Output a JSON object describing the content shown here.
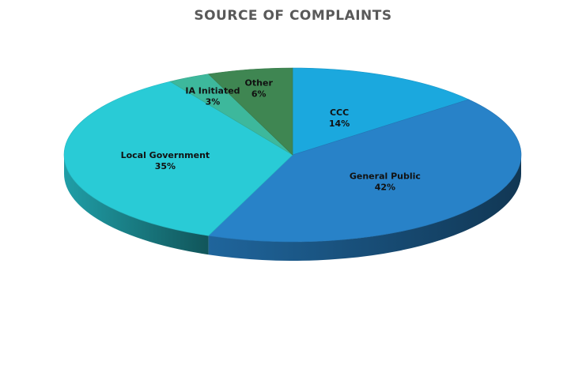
{
  "chart_data": {
    "type": "pie",
    "title": "SOURCE OF COMPLAINTS",
    "categories": [
      "CCC",
      "General Public",
      "Local Government",
      "IA Initiated",
      "Other"
    ],
    "values": [
      14,
      42,
      35,
      3,
      6
    ],
    "labels": [
      "14%",
      "42%",
      "35%",
      "3%",
      "6%"
    ],
    "colors": [
      "#1BA8DE",
      "#2882C8",
      "#29CBD6",
      "#3DB89C",
      "#3F8652"
    ],
    "legend": "none",
    "style": "3d"
  }
}
